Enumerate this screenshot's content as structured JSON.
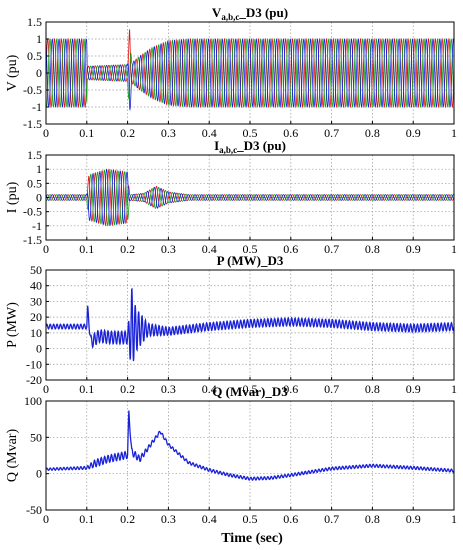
{
  "xlabel": "Time (sec)",
  "chart_data": [
    {
      "type": "line",
      "title": "V_D3 (pu)",
      "title_main": "V",
      "title_sub": "a,b,c",
      "title_rest": "_D3 (pu)",
      "ylabel": "V (pu)",
      "xlim": [
        0,
        1
      ],
      "ylim": [
        -1.5,
        1.5
      ],
      "yticks": [
        "1.5",
        "1",
        "0.5",
        "0",
        "-0.5",
        "-1",
        "-1.5"
      ],
      "ytick_values": [
        1.5,
        1,
        0.5,
        0,
        -0.5,
        -1,
        -1.5
      ],
      "grid": true,
      "series": [
        {
          "phase": "a",
          "color": "#e01010"
        },
        {
          "phase": "b",
          "color": "#10a010"
        },
        {
          "phase": "c",
          "color": "#1020e0"
        }
      ],
      "envelope": {
        "t": [
          0,
          0.1,
          0.101,
          0.2,
          0.205,
          0.21,
          0.23,
          0.26,
          0.3,
          0.35,
          1.0
        ],
        "amp": [
          1.0,
          1.0,
          0.2,
          0.25,
          1.35,
          0.3,
          0.5,
          0.75,
          0.95,
          1.0,
          1.0
        ]
      }
    },
    {
      "type": "line",
      "title": "I_D3 (pu)",
      "title_main": "I",
      "title_sub": "a,b,c",
      "title_rest": "_D3 (pu)",
      "ylabel": "I (pu)",
      "xlim": [
        0,
        1
      ],
      "ylim": [
        -1.5,
        1.5
      ],
      "yticks": [
        "1.5",
        "1",
        "0.5",
        "0",
        "-0.5",
        "-1",
        "-1.5"
      ],
      "ytick_values": [
        1.5,
        1,
        0.5,
        0,
        -0.5,
        -1,
        -1.5
      ],
      "grid": true,
      "series": [
        {
          "phase": "a",
          "color": "#e01010"
        },
        {
          "phase": "b",
          "color": "#10a010"
        },
        {
          "phase": "c",
          "color": "#1020e0"
        }
      ],
      "envelope": {
        "t": [
          0,
          0.1,
          0.105,
          0.15,
          0.2,
          0.205,
          0.24,
          0.27,
          0.3,
          0.35,
          1.0
        ],
        "amp": [
          0.1,
          0.1,
          0.8,
          1.0,
          0.9,
          0.1,
          0.15,
          0.4,
          0.2,
          0.1,
          0.1
        ]
      }
    },
    {
      "type": "line",
      "title": "P (MW)_D3",
      "ylabel": "P (MW)",
      "xlim": [
        0,
        1
      ],
      "ylim": [
        -20,
        50
      ],
      "yticks": [
        "50",
        "40",
        "30",
        "20",
        "10",
        "0",
        "-10",
        "-20"
      ],
      "ytick_values": [
        50,
        40,
        30,
        20,
        10,
        0,
        -10,
        -20
      ],
      "grid": true,
      "series": [
        {
          "name": "P",
          "color": "#1a22d8"
        }
      ],
      "trace": {
        "t": [
          0,
          0.1,
          0.102,
          0.11,
          0.13,
          0.16,
          0.2,
          0.21,
          0.22,
          0.25,
          0.3,
          0.4,
          0.5,
          0.6,
          0.7,
          0.8,
          0.9,
          1.0
        ],
        "mean": [
          14,
          14,
          26,
          4,
          8,
          7,
          7,
          13,
          12,
          12,
          11,
          14,
          16,
          17,
          16,
          14,
          13,
          14
        ],
        "ripple": [
          1.5,
          1.5,
          2,
          4,
          4,
          4,
          4,
          26,
          14,
          4,
          2.5,
          2.5,
          2.5,
          2.5,
          2.5,
          2.5,
          2.5,
          2.5
        ]
      }
    },
    {
      "type": "line",
      "title": "Q (Mvar)_D3",
      "ylabel": "Q (Mvar)",
      "xlim": [
        0,
        1
      ],
      "ylim": [
        -50,
        100
      ],
      "yticks": [
        "100",
        "50",
        "0",
        "-50"
      ],
      "ytick_values": [
        100,
        50,
        0,
        -50
      ],
      "grid": true,
      "series": [
        {
          "name": "Q",
          "color": "#1a22d8"
        }
      ],
      "trace": {
        "t": [
          0,
          0.1,
          0.12,
          0.15,
          0.2,
          0.203,
          0.21,
          0.23,
          0.25,
          0.28,
          0.3,
          0.35,
          0.4,
          0.45,
          0.5,
          0.55,
          0.6,
          0.7,
          0.8,
          0.9,
          1.0
        ],
        "mean": [
          6,
          8,
          14,
          20,
          26,
          85,
          30,
          20,
          35,
          58,
          40,
          15,
          5,
          -2,
          -7,
          -6,
          -2,
          7,
          11,
          8,
          4
        ],
        "ripple": [
          1.5,
          2,
          5,
          5,
          5,
          4,
          5,
          4,
          3,
          2,
          2,
          2,
          2,
          2,
          2,
          2,
          2,
          2,
          2,
          2,
          2
        ]
      }
    }
  ],
  "xticks": [
    "0",
    "0.1",
    "0.2",
    "0.3",
    "0.4",
    "0.5",
    "0.6",
    "0.7",
    "0.8",
    "0.9",
    "1"
  ],
  "xtick_values": [
    0,
    0.1,
    0.2,
    0.3,
    0.4,
    0.5,
    0.6,
    0.7,
    0.8,
    0.9,
    1
  ]
}
